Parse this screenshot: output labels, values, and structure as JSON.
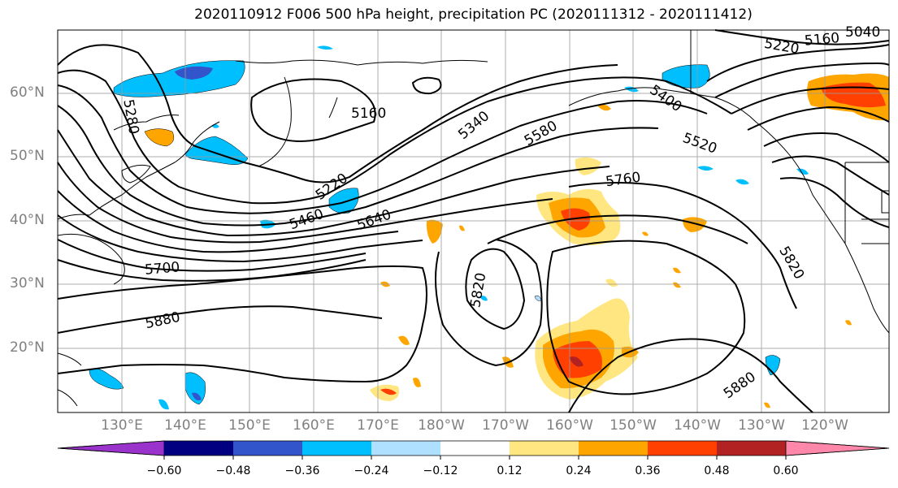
{
  "title": "2020110912 F006 500 hPa height, precipitation PC (2020111312 - 2020111412)",
  "latitude_labels": [
    "60°N",
    "50°N",
    "40°N",
    "30°N",
    "20°N"
  ],
  "longitude_labels": [
    "130°E",
    "140°E",
    "150°E",
    "160°E",
    "170°E",
    "180°W",
    "170°W",
    "160°W",
    "150°W",
    "140°W",
    "130°W",
    "120°W"
  ],
  "contour_labels": [
    "5160",
    "5220",
    "5280",
    "5340",
    "5400",
    "5460",
    "5520",
    "5580",
    "5640",
    "5700",
    "5760",
    "5820",
    "5820",
    "5880",
    "5880",
    "5220",
    "5160",
    "5040"
  ],
  "colorbar": {
    "ticks": [
      "−0.60",
      "−0.48",
      "−0.36",
      "−0.24",
      "−0.12",
      "0.12",
      "0.24",
      "0.36",
      "0.48",
      "0.60"
    ],
    "colors": [
      "#9933cc",
      "#000080",
      "#3355cc",
      "#00bfff",
      "#b0e0ff",
      "#ffffff",
      "#ffe680",
      "#ffa500",
      "#ff4000",
      "#b22222",
      "#ff88aa"
    ]
  },
  "colors": {
    "neg_strong": "#3355cc",
    "neg": "#00bfff",
    "neg_light": "#b0e0ff",
    "pos_light": "#ffe680",
    "pos": "#ffa500",
    "pos_strong": "#ff4000",
    "pos_dark": "#b22222"
  }
}
